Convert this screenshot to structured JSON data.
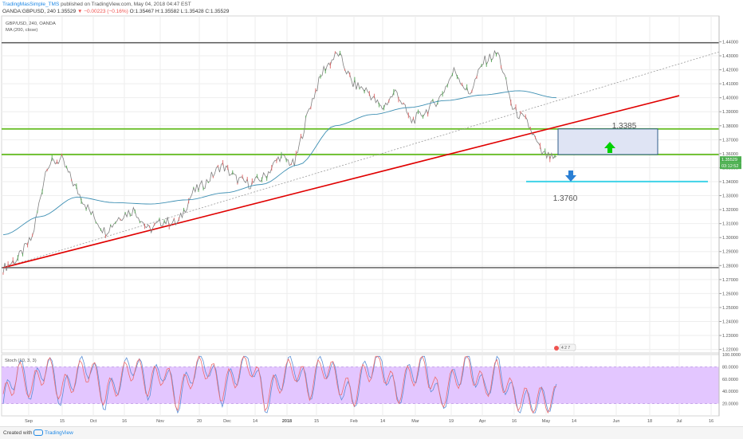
{
  "header": {
    "author": "TradingMasSimple_TMS",
    "published": "published on TradingView.com, May 04, 2018 04:47 EST",
    "symbol_line_prefix": "OANDA:GBPUSD, 240",
    "last": "1.35529",
    "change": "▼ −0.00223 (−0.16%)",
    "ohlc": "O:1.35467 H:1.35582 L:1.35428 C:1.35529"
  },
  "legend": {
    "symbol": "GBP/USD, 240, OANDA",
    "ma": "MA (200, close)"
  },
  "labels": {
    "up_level": "1.3385",
    "down_level": "1.3760",
    "price_tag": "1.35529",
    "countdown_tag": "03:12:52",
    "stoch": "Stoch (10, 3, 3)",
    "event_badge": "4 2 7"
  },
  "colors": {
    "price_line": "#808080",
    "ma_line": "#3d8fb3",
    "trendline": "#e00000",
    "dotted_trend": "#9a9a9a",
    "horizontal_gray": "#555555",
    "horizontal_green": "#6cbf2c",
    "target_cyan": "#3fd3e8",
    "box_fill": "#dfe4f4",
    "box_border": "#2f5d8a",
    "up_arrow": "#00d100",
    "down_arrow": "#2a7fd4",
    "stoch_band": "#e3c6ff",
    "stoch_k": "#5a8fd6",
    "stoch_d": "#ef6c6c",
    "price_tag_bg": "#4caf50"
  },
  "chart_data": [
    {
      "type": "line",
      "title": "GBP/USD, 240, OANDA",
      "series": [
        {
          "name": "GBP/USD",
          "x": [
            "Sep",
            "Sep",
            "Sep",
            "15",
            "15",
            "15",
            "Oct",
            "Oct",
            "16",
            "16",
            "Nov",
            "Nov",
            "Nov",
            "20",
            "20",
            "Dec",
            "Dec",
            "14",
            "14",
            "2018",
            "2018",
            "15",
            "15",
            "15",
            "Feb",
            "Feb",
            "14",
            "14",
            "Mar",
            "Mar",
            "19",
            "19",
            "Apr",
            "Apr",
            "Apr",
            "16",
            "16",
            "May",
            "May"
          ],
          "values": [
            1.278,
            1.285,
            1.3,
            1.352,
            1.356,
            1.335,
            1.318,
            1.304,
            1.315,
            1.32,
            1.305,
            1.312,
            1.31,
            1.332,
            1.34,
            1.352,
            1.342,
            1.338,
            1.344,
            1.358,
            1.352,
            1.392,
            1.42,
            1.432,
            1.41,
            1.405,
            1.392,
            1.405,
            1.383,
            1.39,
            1.4,
            1.42,
            1.402,
            1.426,
            1.432,
            1.392,
            1.382,
            1.36,
            1.355
          ]
        },
        {
          "name": "MA (200, close)",
          "x": [
            "Sep",
            "Oct",
            "16",
            "Nov",
            "20",
            "Dec",
            "14",
            "2018",
            "15",
            "Feb",
            "14",
            "Mar",
            "19",
            "Apr",
            "16",
            "May"
          ],
          "values": [
            1.302,
            1.315,
            1.329,
            1.325,
            1.324,
            1.327,
            1.332,
            1.338,
            1.352,
            1.38,
            1.388,
            1.393,
            1.398,
            1.402,
            1.405,
            1.4
          ]
        }
      ],
      "y_ticks": [
        "1.44000",
        "1.43000",
        "1.42000",
        "1.41000",
        "1.40000",
        "1.39000",
        "1.38000",
        "1.37000",
        "1.36000",
        "1.35000",
        "1.34000",
        "1.33000",
        "1.32000",
        "1.31000",
        "1.30000",
        "1.29000",
        "1.28000",
        "1.27000",
        "1.26000",
        "1.25000",
        "1.24000",
        "1.23000",
        "1.22000"
      ],
      "ylim": [
        1.2175,
        1.4585
      ],
      "x_ticks": [
        "Sep",
        "15",
        "Oct",
        "16",
        "Nov",
        "20",
        "Dec",
        "14",
        "2018",
        "15",
        "Feb",
        "14",
        "Mar",
        "19",
        "Apr",
        "16",
        "May",
        "14",
        "Jun",
        "18",
        "Jul",
        "16"
      ],
      "horizontal_levels": [
        1.4393,
        1.2785,
        1.3777,
        1.3594,
        1.3401
      ],
      "target_box": {
        "y_range": [
          1.3594,
          1.3777
        ]
      },
      "grid": true
    },
    {
      "type": "line",
      "title": "Stoch (10, 3, 3)",
      "y_ticks": [
        "100.0000",
        "80.0000",
        "60.0000",
        "40.0000",
        "20.0000"
      ],
      "ylim": [
        0,
        100
      ],
      "band": [
        20,
        80
      ],
      "series": [
        {
          "name": "%K",
          "values": [
            20,
            80,
            40,
            90,
            30,
            70,
            85,
            25,
            60,
            90,
            45,
            80,
            20,
            75,
            88,
            35,
            70,
            95,
            20,
            60,
            85,
            40,
            90,
            55,
            25,
            80,
            90,
            30,
            70,
            85,
            20,
            60,
            90,
            40,
            80,
            30,
            20,
            25,
            30
          ]
        },
        {
          "name": "%D",
          "values": [
            25,
            70,
            45,
            82,
            40,
            65,
            78,
            32,
            58,
            82,
            50,
            74,
            28,
            70,
            82,
            42,
            68,
            88,
            28,
            58,
            80,
            45,
            84,
            58,
            32,
            76,
            84,
            36,
            68,
            80,
            28,
            60,
            84,
            44,
            74,
            34,
            24,
            26,
            28
          ]
        }
      ]
    }
  ]
}
